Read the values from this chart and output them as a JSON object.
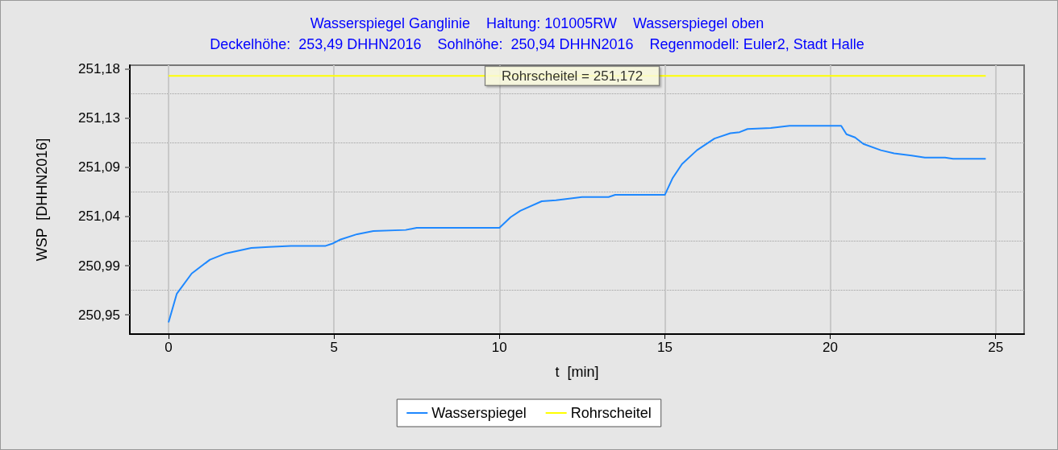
{
  "chart_data": {
    "type": "line",
    "title": "Wasserspiegel Ganglinie    Haltung: 101005RW    Wasserspiegel oben",
    "subtitle": "Deckelhöhe:  253,49 DHHN2016    Sohlhöhe:  250,94 DHHN2016    Regenmodell: Euler2, Stadt Halle",
    "xlabel": "t  [min]",
    "ylabel": "WSP  [DHHN2016]",
    "xlim": [
      -1.17,
      25.86
    ],
    "xticks": [
      0,
      5,
      10,
      15,
      20,
      25
    ],
    "ylim": [
      250.929,
      251.182
    ],
    "yticks": [
      {
        "value": 250.947,
        "label": "250,95"
      },
      {
        "value": 250.9702,
        "label": null
      },
      {
        "value": 250.9933,
        "label": "250,99"
      },
      {
        "value": 251.0165,
        "label": null
      },
      {
        "value": 251.0396,
        "label": "251,04"
      },
      {
        "value": 251.0628,
        "label": null
      },
      {
        "value": 251.0859,
        "label": "251,09"
      },
      {
        "value": 251.1091,
        "label": null
      },
      {
        "value": 251.1322,
        "label": "251,13"
      },
      {
        "value": 251.1554,
        "label": null
      },
      {
        "value": 251.1785,
        "label": "251,18"
      }
    ],
    "grid": true,
    "legend": "bottom",
    "marker": "none",
    "line_style": "solid",
    "series": [
      {
        "name": "Wasserspiegel",
        "color": "#1e88ff",
        "x": [
          0,
          0.25,
          0.7,
          1.25,
          1.74,
          2.5,
          3.04,
          3.7,
          4.75,
          4.94,
          5.2,
          5.7,
          6.19,
          7.17,
          7.5,
          10,
          10.34,
          10.63,
          11.28,
          11.71,
          12.5,
          13.3,
          13.5,
          15,
          15.24,
          15.52,
          15.97,
          16.5,
          16.98,
          17.26,
          17.5,
          18.2,
          18.77,
          20.33,
          20.49,
          20.75,
          21,
          21.53,
          21.93,
          22.46,
          22.86,
          23.47,
          23.71,
          24.7
        ],
        "values": [
          250.94,
          250.967,
          250.986,
          250.999,
          251.005,
          251.01,
          251.011,
          251.012,
          251.012,
          251.014,
          251.018,
          251.023,
          251.026,
          251.027,
          251.029,
          251.029,
          251.039,
          251.045,
          251.054,
          251.055,
          251.058,
          251.058,
          251.06,
          251.06,
          251.076,
          251.089,
          251.102,
          251.113,
          251.118,
          251.119,
          251.122,
          251.123,
          251.125,
          251.125,
          251.117,
          251.114,
          251.108,
          251.102,
          251.099,
          251.097,
          251.095,
          251.095,
          251.094,
          251.094
        ]
      },
      {
        "name": "Rohrscheitel",
        "color": "#ffff00",
        "x": [
          0,
          24.7
        ],
        "values": [
          251.172,
          251.172
        ]
      }
    ],
    "annotations": [
      {
        "text": "Rohrscheitel = 251,172",
        "x": 12.2,
        "y": 251.172
      }
    ]
  }
}
